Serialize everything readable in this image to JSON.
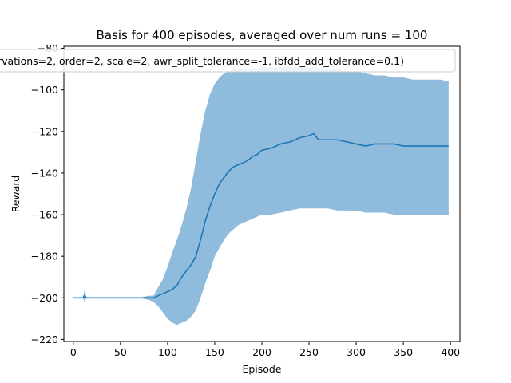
{
  "chart_data": {
    "type": "line",
    "title": "Basis for 400 episodes, averaged over num runs = 100",
    "xlabel": "Episode",
    "ylabel": "Reward",
    "xlim": [
      -10,
      410
    ],
    "ylim": [
      -221,
      -79
    ],
    "xticks": [
      0,
      50,
      100,
      150,
      200,
      250,
      300,
      350,
      400
    ],
    "yticks": [
      -220,
      -200,
      -180,
      -160,
      -140,
      -120,
      -100,
      -80
    ],
    "grid": false,
    "legend_placement": "top-center",
    "series": [
      {
        "name": "rvations=2, order=2, scale=2, awr_split_tolerance=-1, ibfdd_add_tolerance=0.1)",
        "color": "#1f77b4",
        "band_color": "#8fbbdd",
        "x": [
          0,
          10,
          12,
          14,
          20,
          40,
          60,
          70,
          80,
          85,
          90,
          95,
          100,
          105,
          110,
          115,
          120,
          125,
          130,
          135,
          140,
          145,
          150,
          155,
          160,
          165,
          170,
          175,
          180,
          185,
          190,
          195,
          200,
          210,
          220,
          230,
          240,
          250,
          255,
          260,
          270,
          280,
          290,
          300,
          310,
          320,
          330,
          340,
          350,
          360,
          370,
          380,
          390,
          398
        ],
        "mean": [
          -200,
          -200,
          -199,
          -200,
          -200,
          -200,
          -200,
          -200,
          -200,
          -200,
          -199,
          -198,
          -197,
          -196,
          -194,
          -190,
          -187,
          -184,
          -180,
          -172,
          -163,
          -156,
          -150,
          -145,
          -142,
          -139,
          -137,
          -136,
          -135,
          -134,
          -132,
          -131,
          -129,
          -128,
          -126,
          -125,
          -123,
          -122,
          -121,
          -124,
          -124,
          -124,
          -125,
          -126,
          -127,
          -126,
          -126,
          -126,
          -127,
          -127,
          -127,
          -127,
          -127,
          -127
        ],
        "upper": [
          -200,
          -200,
          -196,
          -200,
          -200,
          -200,
          -200,
          -200,
          -199,
          -199,
          -195,
          -191,
          -185,
          -178,
          -172,
          -165,
          -157,
          -147,
          -134,
          -121,
          -110,
          -102,
          -97,
          -94,
          -92,
          -91,
          -90,
          -90,
          -90,
          -90,
          -90,
          -90,
          -89,
          -89,
          -89,
          -89,
          -89,
          -89,
          -89,
          -89,
          -90,
          -90,
          -91,
          -91,
          -92,
          -93,
          -93,
          -94,
          -94,
          -95,
          -95,
          -95,
          -95,
          -96
        ],
        "lower": [
          -200,
          -200,
          -202,
          -200,
          -200,
          -200,
          -200,
          -200,
          -201,
          -202,
          -204,
          -207,
          -210,
          -212,
          -213,
          -212,
          -211,
          -209,
          -206,
          -200,
          -193,
          -187,
          -180,
          -176,
          -172,
          -169,
          -167,
          -165,
          -164,
          -163,
          -162,
          -161,
          -160,
          -160,
          -159,
          -158,
          -157,
          -157,
          -157,
          -157,
          -157,
          -158,
          -158,
          -158,
          -159,
          -159,
          -159,
          -160,
          -160,
          -160,
          -160,
          -160,
          -160,
          -160
        ]
      }
    ]
  }
}
